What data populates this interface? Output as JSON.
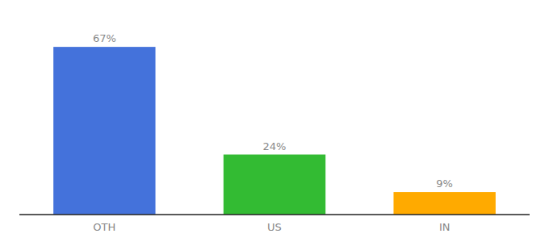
{
  "chart_data": {
    "type": "bar",
    "categories": [
      "OTH",
      "US",
      "IN"
    ],
    "values": [
      67,
      24,
      9
    ],
    "value_labels": [
      "67%",
      "24%",
      "9%"
    ],
    "colors": [
      "#4472db",
      "#33bb33",
      "#ffaa00"
    ],
    "ylim": [
      0,
      78
    ],
    "data_labels": true,
    "tick_labels": "x"
  }
}
